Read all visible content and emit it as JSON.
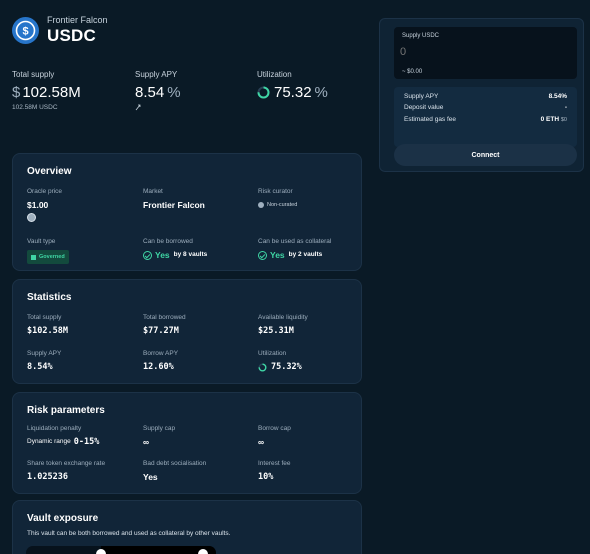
{
  "header": {
    "market_name": "Frontier Falcon",
    "asset": "USDC",
    "logo_icon": "usdc-logo-icon"
  },
  "top_stats": {
    "total_supply": {
      "label": "Total supply",
      "currency": "$",
      "value": "102.58M",
      "note": "102.58M USDC"
    },
    "supply_apy": {
      "label": "Supply APY",
      "value": "8.54",
      "unit": "%",
      "icon": "rewards-sparkle-icon"
    },
    "utilization": {
      "label": "Utilization",
      "value": "75.32",
      "unit": "%",
      "fraction": 0.7532
    }
  },
  "overview": {
    "title": "Overview",
    "oracle_price_label": "Oracle price",
    "oracle_price": "$1.00",
    "market_label": "Market",
    "market": "Frontier Falcon",
    "risk_curator_label": "Risk curator",
    "risk_curator": "Non-curated",
    "vault_type_label": "Vault type",
    "vault_type": "Governed",
    "borrowable_label": "Can be borrowed",
    "borrowable_yes": "Yes",
    "borrowable_by": "by 8 vaults",
    "collateral_label": "Can be used as collateral",
    "collateral_yes": "Yes",
    "collateral_by": "by 2 vaults"
  },
  "statistics": {
    "title": "Statistics",
    "total_supply_label": "Total supply",
    "total_supply": "$102.58M",
    "total_borrowed_label": "Total borrowed",
    "total_borrowed": "$77.27M",
    "available_label": "Available liquidity",
    "available": "$25.31M",
    "supply_apy_label": "Supply APY",
    "supply_apy": "8.54%",
    "borrow_apy_label": "Borrow APY",
    "borrow_apy": "12.60%",
    "utilization_label": "Utilization",
    "utilization": "75.32%",
    "utilization_fraction": 0.7532
  },
  "risk": {
    "title": "Risk parameters",
    "liq_label": "Liquidation penalty",
    "liq_prefix": "Dynamic range",
    "liq_value": "0-15%",
    "supply_cap_label": "Supply cap",
    "supply_cap": "∞",
    "borrow_cap_label": "Borrow cap",
    "borrow_cap": "∞",
    "exchange_label": "Share token exchange rate",
    "exchange": "1.025236",
    "bad_debt_label": "Bad debt socialisation",
    "bad_debt": "Yes",
    "interest_fee_label": "Interest fee",
    "interest_fee": "10%"
  },
  "exposure": {
    "title": "Vault exposure",
    "description": "This vault can be both borrowed and used as collateral by other vaults."
  },
  "supply_panel": {
    "input_label": "Supply USDC",
    "input_placeholder": "0",
    "usd_value": "~ $0.00",
    "rows": [
      {
        "label": "Supply APY",
        "value": "8.54%"
      },
      {
        "label": "Deposit value",
        "value": "-"
      },
      {
        "label": "Estimated gas fee",
        "value": "0 ETH",
        "suffix": "$0"
      }
    ],
    "connect_label": "Connect"
  },
  "colors": {
    "background": "#0a1a26",
    "card": "#112538",
    "accent_green": "#3fd6a5",
    "usdc_blue": "#2775ca"
  }
}
